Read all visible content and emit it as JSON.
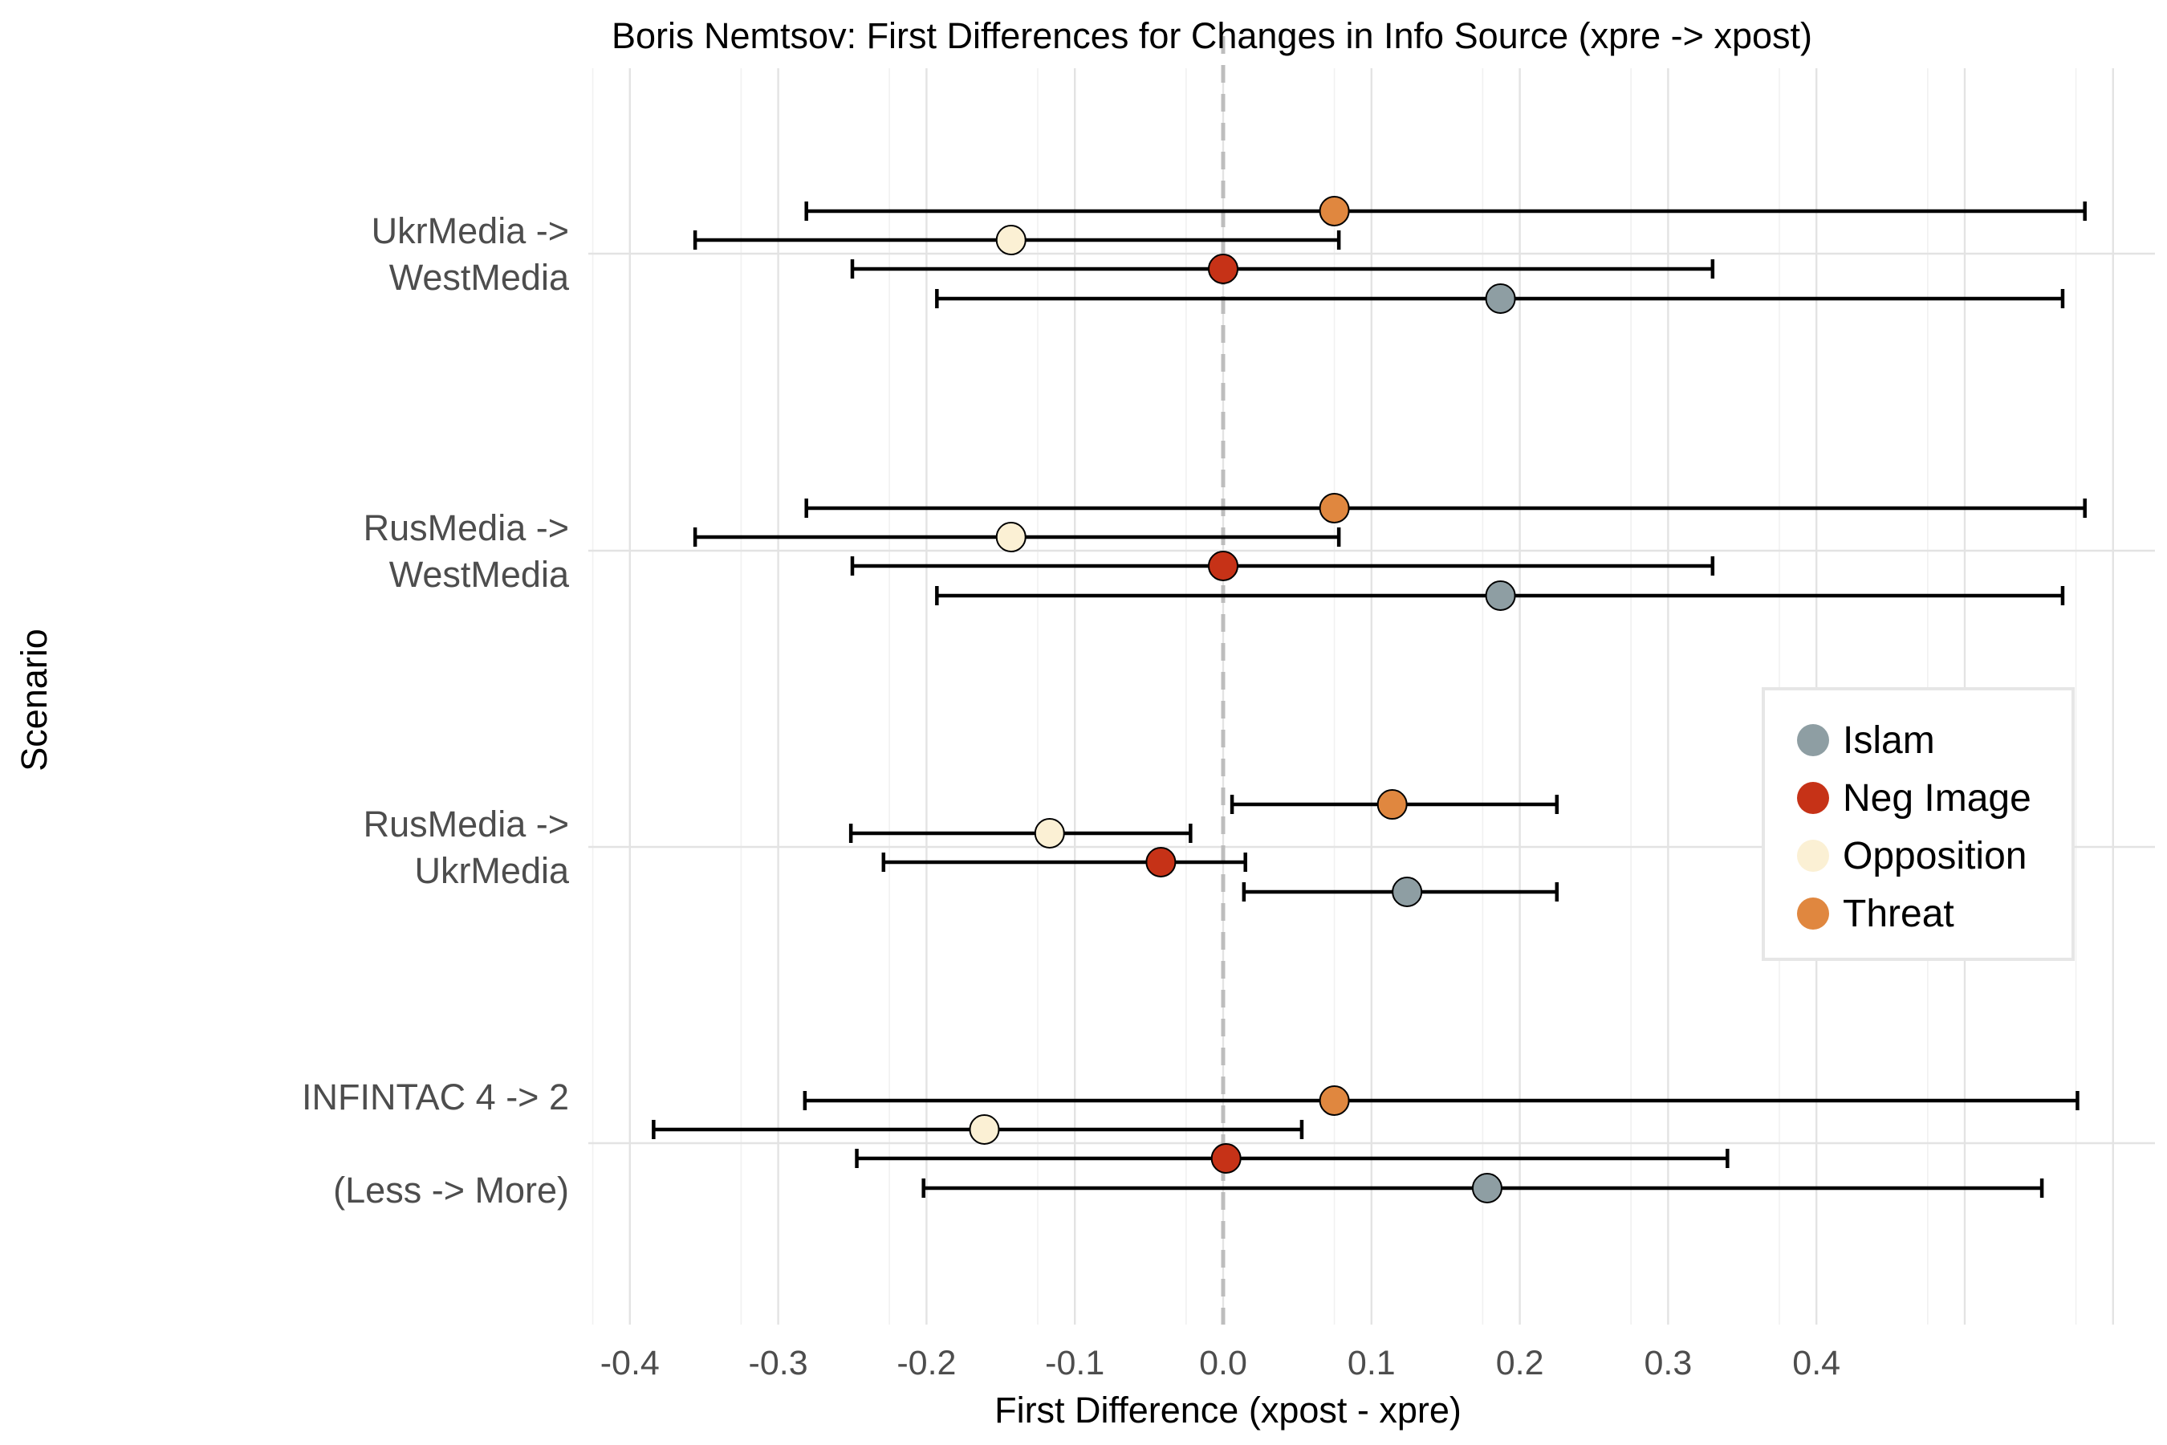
{
  "chart_data": {
    "type": "scatter",
    "title": "Boris Nemtsov: First Differences for Changes in Info Source (xpre -> xpost)",
    "xlabel": "First Difference (xpost - xpre)",
    "ylabel": "Scenario",
    "xlim": [
      -0.425,
      0.625
    ],
    "x_ticks": [
      "-0.4",
      "-0.3",
      "-0.2",
      "-0.1",
      "0.0",
      "0.1",
      "0.2",
      "0.3",
      "0.4"
    ],
    "reference_line": 0.0,
    "grid": true,
    "legend_position": "right",
    "categories": [
      {
        "lines": [
          "UkrMedia ->",
          "WestMedia"
        ]
      },
      {
        "lines": [
          "RusMedia ->",
          "WestMedia"
        ]
      },
      {
        "lines": [
          "RusMedia -> ",
          "UkrMedia"
        ]
      },
      {
        "lines": [
          "INFINTAC 4 -> 2 ",
          "",
          "(Less -> More)"
        ]
      }
    ],
    "series": [
      {
        "name": "Threat",
        "color": "#E0873F",
        "points": [
          {
            "est": 0.075,
            "lo": -0.281,
            "hi": 0.581
          },
          {
            "est": 0.075,
            "lo": -0.281,
            "hi": 0.581
          },
          {
            "est": 0.114,
            "lo": 0.006,
            "hi": 0.225
          },
          {
            "est": 0.075,
            "lo": -0.282,
            "hi": 0.576
          }
        ]
      },
      {
        "name": "Opposition",
        "color": "#FBF0D4",
        "points": [
          {
            "est": -0.143,
            "lo": -0.356,
            "hi": 0.078
          },
          {
            "est": -0.143,
            "lo": -0.356,
            "hi": 0.078
          },
          {
            "est": -0.117,
            "lo": -0.251,
            "hi": -0.022
          },
          {
            "est": -0.161,
            "lo": -0.384,
            "hi": 0.053
          }
        ]
      },
      {
        "name": "Neg Image",
        "color": "#C63217",
        "points": [
          {
            "est": 0.0,
            "lo": -0.25,
            "hi": 0.33
          },
          {
            "est": 0.0,
            "lo": -0.25,
            "hi": 0.33
          },
          {
            "est": -0.042,
            "lo": -0.229,
            "hi": 0.015
          },
          {
            "est": 0.002,
            "lo": -0.247,
            "hi": 0.34
          }
        ]
      },
      {
        "name": "Islam",
        "color": "#8E9EA3",
        "points": [
          {
            "est": 0.187,
            "lo": -0.193,
            "hi": 0.566
          },
          {
            "est": 0.187,
            "lo": -0.193,
            "hi": 0.566
          },
          {
            "est": 0.124,
            "lo": 0.014,
            "hi": 0.225
          },
          {
            "est": 0.178,
            "lo": -0.202,
            "hi": 0.552
          }
        ]
      }
    ],
    "legend_order": [
      "Islam",
      "Neg Image",
      "Opposition",
      "Threat"
    ]
  }
}
